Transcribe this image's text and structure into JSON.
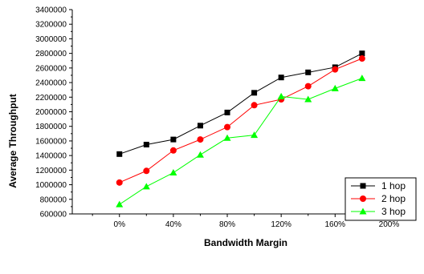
{
  "chart_data": {
    "type": "line",
    "title": "",
    "xlabel": "Bandwidth Margin",
    "ylabel": "Average Throughput",
    "x": [
      0,
      20,
      40,
      60,
      80,
      100,
      120,
      140,
      160,
      180
    ],
    "x_tick_values": [
      0,
      40,
      80,
      120,
      160,
      200
    ],
    "x_tick_labels": [
      "0%",
      "40%",
      "80%",
      "120%",
      "160%",
      "200%"
    ],
    "xlim": [
      -35,
      220
    ],
    "ylim": [
      600000,
      3400000
    ],
    "y_tick_values": [
      600000,
      800000,
      1000000,
      1200000,
      1400000,
      1600000,
      1800000,
      2000000,
      2200000,
      2400000,
      2600000,
      2800000,
      3000000,
      3200000,
      3400000
    ],
    "y_tick_labels": [
      "600000",
      "800000",
      "1000000",
      "1200000",
      "1400000",
      "1600000",
      "1800000",
      "2000000",
      "2200000",
      "2400000",
      "2600000",
      "2800000",
      "3000000",
      "3200000",
      "3400000"
    ],
    "grid": false,
    "legend_position": "bottom-right",
    "series": [
      {
        "name": "1 hop",
        "color": "#000000",
        "marker": "square",
        "values": [
          1420000,
          1550000,
          1620000,
          1810000,
          1990000,
          2260000,
          2470000,
          2540000,
          2610000,
          2800000
        ]
      },
      {
        "name": "2 hop",
        "color": "#ff0000",
        "marker": "circle",
        "values": [
          1030000,
          1190000,
          1470000,
          1620000,
          1790000,
          2090000,
          2170000,
          2350000,
          2580000,
          2730000
        ]
      },
      {
        "name": "3 hop",
        "color": "#00ff00",
        "marker": "triangle",
        "values": [
          730000,
          975000,
          1165000,
          1410000,
          1640000,
          1680000,
          2210000,
          2170000,
          2320000,
          2460000
        ]
      }
    ]
  }
}
